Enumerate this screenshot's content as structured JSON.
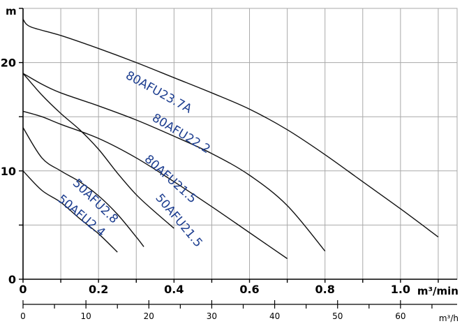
{
  "chart_data": {
    "type": "line",
    "title": "",
    "ylabel": "m",
    "xlabel": "m³/min",
    "x2label": "m³/h",
    "xlim": [
      0,
      1.15
    ],
    "ylim": [
      0,
      25
    ],
    "x2lim": [
      0,
      69
    ],
    "grid": true,
    "x_ticks": [
      0,
      0.1,
      0.2,
      0.3,
      0.4,
      0.5,
      0.6,
      0.7,
      0.8,
      0.9,
      1.0,
      1.1
    ],
    "x_tick_labels": [
      {
        "value": 0,
        "label": "0"
      },
      {
        "value": 0.2,
        "label": "0.2"
      },
      {
        "value": 0.4,
        "label": "0.4"
      },
      {
        "value": 0.6,
        "label": "0.6"
      },
      {
        "value": 0.8,
        "label": "0.8"
      },
      {
        "value": 1.0,
        "label": "1.0"
      }
    ],
    "y_ticks": [
      0,
      5,
      10,
      15,
      20,
      25
    ],
    "y_tick_labels": [
      {
        "value": 0,
        "label": "0"
      },
      {
        "value": 10,
        "label": "10"
      },
      {
        "value": 20,
        "label": "20"
      }
    ],
    "x2_major_ticks": [
      0,
      10,
      20,
      30,
      40,
      50,
      60
    ],
    "x2_minor_ticks": [
      5,
      15,
      25,
      35,
      45,
      55,
      65
    ],
    "x2_tick_labels": [
      {
        "value": 0,
        "label": "0"
      },
      {
        "value": 10,
        "label": "10"
      },
      {
        "value": 20,
        "label": "20"
      },
      {
        "value": 30,
        "label": "30"
      },
      {
        "value": 40,
        "label": "40"
      },
      {
        "value": 50,
        "label": "50"
      },
      {
        "value": 60,
        "label": "60"
      }
    ],
    "series": [
      {
        "name": "80AFU23.7A",
        "x": [
          0,
          0.02,
          0.1,
          0.2,
          0.3,
          0.4,
          0.5,
          0.6,
          0.7,
          0.8,
          0.9,
          1.0,
          1.1
        ],
        "y": [
          24,
          23.3,
          22.5,
          21.3,
          20.0,
          18.6,
          17.2,
          15.7,
          13.8,
          11.5,
          9.0,
          6.5,
          3.9
        ],
        "label_at": [
          0.27,
          18.6
        ],
        "label_angle": 29
      },
      {
        "name": "80AFU22.2",
        "x": [
          0,
          0.05,
          0.1,
          0.2,
          0.3,
          0.4,
          0.5,
          0.6,
          0.7,
          0.8
        ],
        "y": [
          19.0,
          18.0,
          17.2,
          16.0,
          14.7,
          13.2,
          11.6,
          9.6,
          6.8,
          2.6
        ],
        "label_at": [
          0.34,
          14.7
        ],
        "label_angle": 31
      },
      {
        "name": "80AFU21.5",
        "x": [
          0,
          0.05,
          0.1,
          0.2,
          0.3,
          0.4,
          0.5,
          0.6,
          0.7
        ],
        "y": [
          15.5,
          15.0,
          14.3,
          13.0,
          11.2,
          9.0,
          6.7,
          4.3,
          1.9
        ],
        "label_at": [
          0.32,
          11.0
        ],
        "label_angle": 42
      },
      {
        "name": "50AFU21.5",
        "x": [
          0,
          0.05,
          0.1,
          0.15,
          0.2,
          0.25,
          0.3,
          0.35,
          0.4
        ],
        "y": [
          19.0,
          17.0,
          15.3,
          13.8,
          12.0,
          9.8,
          7.8,
          6.2,
          4.7
        ],
        "label_at": [
          0.35,
          7.5
        ],
        "label_angle": 50
      },
      {
        "name": "50AFU2.8",
        "x": [
          0,
          0.05,
          0.1,
          0.15,
          0.2,
          0.25,
          0.3,
          0.32
        ],
        "y": [
          14.0,
          11.2,
          10.0,
          9.0,
          7.7,
          6.0,
          3.9,
          3.0
        ],
        "label_at": [
          0.13,
          8.8
        ],
        "label_angle": 44
      },
      {
        "name": "50AFU2.4",
        "x": [
          0,
          0.05,
          0.1,
          0.15,
          0.2,
          0.25
        ],
        "y": [
          10.0,
          8.2,
          7.1,
          5.6,
          4.2,
          2.5
        ],
        "label_at": [
          0.09,
          7.3
        ],
        "label_angle": 40
      }
    ]
  }
}
